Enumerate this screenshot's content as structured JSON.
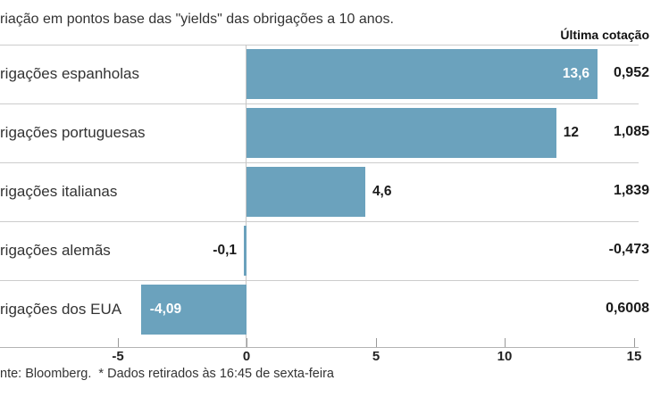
{
  "title": "riação em pontos base das \"yields\" das obrigações a 10 anos.",
  "header": {
    "last_quote_label": "Última cotação"
  },
  "footer": "nte: Bloomberg.  * Dados retirados às 16:45 de sexta-feira",
  "colors": {
    "bar": "#6ba2bd",
    "grid_line": "#cccccc",
    "axis_line": "#b3b3b3",
    "inside_label": "#ffffff",
    "outside_label": "#1a1a1a"
  },
  "chart_data": {
    "type": "bar",
    "orientation": "horizontal",
    "title": "riação em pontos base das \"yields\" das obrigações a 10 anos.",
    "unit": "pontos base",
    "categories": [
      "rigações espanholas",
      "rigações portuguesas",
      "rigações italianas",
      "rigações alemãs",
      "rigações dos EUA"
    ],
    "values": [
      13.6,
      12,
      4.6,
      -0.1,
      -4.09
    ],
    "value_labels": [
      "13,6",
      "12",
      "4,6",
      "-0,1",
      "-4,09"
    ],
    "value_label_inside": [
      true,
      false,
      false,
      false,
      true
    ],
    "last_quotes": [
      "0,952",
      "1,085",
      "1,839",
      "-0,473",
      "0,6008"
    ],
    "x_ticks": [
      -5,
      0,
      5,
      10,
      15
    ],
    "x_tick_labels": [
      "-5",
      "0",
      "5",
      "10",
      "15"
    ],
    "xlim": [
      -9.55,
      15.2
    ],
    "grid": false,
    "legend": false,
    "source_note": "nte: Bloomberg.  * Dados retirados às 16:45 de sexta-feira"
  }
}
